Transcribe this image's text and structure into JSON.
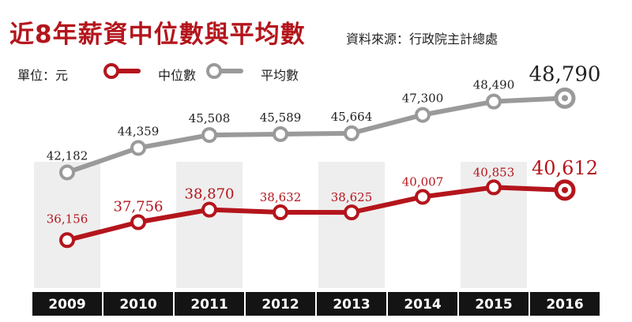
{
  "title": "近8年薪資中位數與平均數",
  "source": "資料來源：行政院主計總處",
  "unit_label": "單位：元",
  "chart_data": {
    "type": "line",
    "categories": [
      "2009",
      "2010",
      "2011",
      "2012",
      "2013",
      "2014",
      "2015",
      "2016"
    ],
    "series": [
      {
        "name": "中位數",
        "color": "#b4151c",
        "values": [
          36156,
          37756,
          38870,
          38632,
          38625,
          40007,
          40853,
          40612
        ],
        "labels": [
          "36,156",
          "37,756",
          "38,870",
          "38,632",
          "38,625",
          "40,007",
          "40,853",
          "40,612"
        ]
      },
      {
        "name": "平均數",
        "color": "#9a9a9a",
        "values": [
          42182,
          44359,
          45508,
          45589,
          45664,
          47300,
          48490,
          48790
        ],
        "labels": [
          "42,182",
          "44,359",
          "45,508",
          "45,589",
          "45,664",
          "47,300",
          "48,490",
          "48,790"
        ]
      }
    ],
    "legend": "top-left",
    "grid": false,
    "ylim": [
      34000,
      50500
    ],
    "band_color": "#eeeeee",
    "axis_bar_color": "#141414"
  }
}
